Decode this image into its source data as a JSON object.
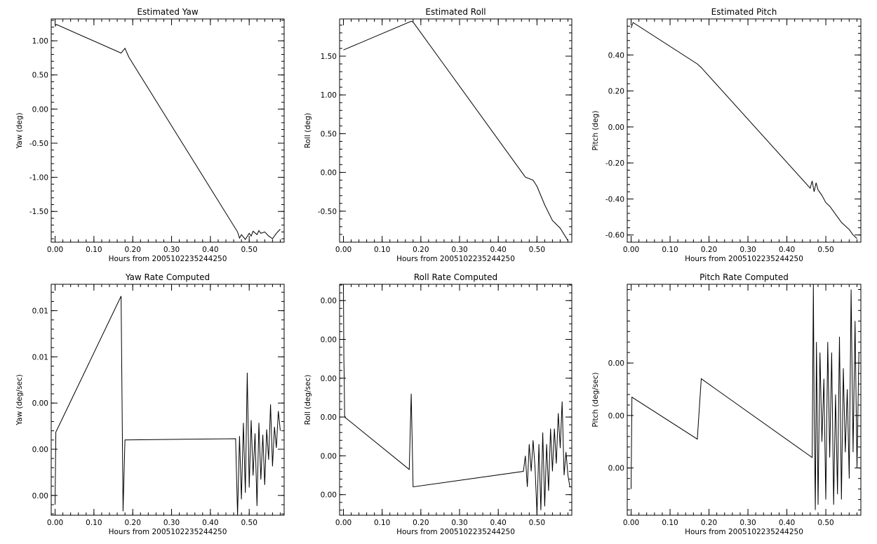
{
  "chart_data": [
    {
      "type": "line",
      "title": "Estimated Yaw",
      "xlabel": "Hours from 2005102235244250",
      "ylabel": "Yaw (deg)",
      "xlim": [
        -0.01,
        0.59
      ],
      "ylim": [
        -1.95,
        1.32
      ],
      "xticks": [
        0.0,
        0.1,
        0.2,
        0.3,
        0.4,
        0.5
      ],
      "xtick_labels": [
        "0.00",
        "0.10",
        "0.20",
        "0.30",
        "0.40",
        "0.50"
      ],
      "yticks": [
        -1.5,
        -1.0,
        -0.5,
        0.0,
        0.5,
        1.0
      ],
      "ytick_labels": [
        "-1.50",
        "-1.00",
        "-0.50",
        "0.00",
        "0.50",
        "1.00"
      ],
      "series": [
        {
          "x": [
            0.0,
            0.003,
            0.17,
            0.18,
            0.19,
            0.47,
            0.475,
            0.48,
            0.49,
            0.5,
            0.505,
            0.51,
            0.52,
            0.525,
            0.53,
            0.54,
            0.55,
            0.56,
            0.57,
            0.575,
            0.58
          ],
          "y": [
            1.21,
            1.24,
            0.82,
            0.89,
            0.76,
            -1.8,
            -1.89,
            -1.84,
            -1.91,
            -1.82,
            -1.86,
            -1.79,
            -1.84,
            -1.78,
            -1.82,
            -1.8,
            -1.86,
            -1.9,
            -1.82,
            -1.79,
            -1.76
          ]
        }
      ]
    },
    {
      "type": "line",
      "title": "Estimated Roll",
      "xlabel": "Hours from 2005102235244250",
      "ylabel": "Roll (deg)",
      "xlim": [
        -0.01,
        0.59
      ],
      "ylim": [
        -0.9,
        1.98
      ],
      "xticks": [
        0.0,
        0.1,
        0.2,
        0.3,
        0.4,
        0.5
      ],
      "xtick_labels": [
        "0.00",
        "0.10",
        "0.20",
        "0.30",
        "0.40",
        "0.50"
      ],
      "yticks": [
        -0.5,
        0.0,
        0.5,
        1.0,
        1.5
      ],
      "ytick_labels": [
        "-0.50",
        "0.00",
        "0.50",
        "1.00",
        "1.50"
      ],
      "series": [
        {
          "x": [
            0.0,
            0.175,
            0.18,
            0.47,
            0.49,
            0.5,
            0.52,
            0.54,
            0.56,
            0.58
          ],
          "y": [
            1.58,
            1.95,
            1.94,
            -0.06,
            -0.1,
            -0.18,
            -0.42,
            -0.62,
            -0.72,
            -0.88
          ]
        }
      ]
    },
    {
      "type": "line",
      "title": "Estimated Pitch",
      "xlabel": "Hours from 2005102235244250",
      "ylabel": "Pitch (deg)",
      "xlim": [
        -0.01,
        0.59
      ],
      "ylim": [
        -0.64,
        0.6
      ],
      "xticks": [
        0.0,
        0.1,
        0.2,
        0.3,
        0.4,
        0.5
      ],
      "xtick_labels": [
        "0.00",
        "0.10",
        "0.20",
        "0.30",
        "0.40",
        "0.50"
      ],
      "yticks": [
        -0.6,
        -0.4,
        -0.2,
        0.0,
        0.2,
        0.4
      ],
      "ytick_labels": [
        "-0.60",
        "-0.40",
        "-0.20",
        "0.00",
        "0.20",
        "0.40"
      ],
      "series": [
        {
          "x": [
            0.0,
            0.005,
            0.17,
            0.18,
            0.46,
            0.465,
            0.47,
            0.475,
            0.48,
            0.49,
            0.5,
            0.51,
            0.52,
            0.53,
            0.54,
            0.55,
            0.56,
            0.57,
            0.58
          ],
          "y": [
            0.55,
            0.58,
            0.35,
            0.33,
            -0.34,
            -0.3,
            -0.36,
            -0.31,
            -0.35,
            -0.38,
            -0.42,
            -0.44,
            -0.47,
            -0.5,
            -0.53,
            -0.55,
            -0.57,
            -0.6,
            -0.62
          ]
        }
      ]
    },
    {
      "type": "line",
      "title": "Yaw Rate Computed",
      "xlabel": "Hours from 2005102235244250",
      "ylabel": "Yaw (deg/sec)",
      "xlim": [
        -0.01,
        0.59
      ],
      "ylim": [
        -0.0015,
        0.016
      ],
      "xticks": [
        0.0,
        0.1,
        0.2,
        0.3,
        0.4,
        0.5
      ],
      "xtick_labels": [
        "0.00",
        "0.10",
        "0.20",
        "0.30",
        "0.40",
        "0.50"
      ],
      "yticks": [
        0.0,
        0.0035,
        0.007,
        0.0105,
        0.014
      ],
      "ytick_labels": [
        "0.00",
        "0.00",
        "0.00",
        "0.01",
        "0.01"
      ],
      "series": [
        {
          "x": [
            0.0,
            0.002,
            0.17,
            0.175,
            0.18,
            0.465,
            0.47,
            0.475,
            0.48,
            0.485,
            0.49,
            0.495,
            0.5,
            0.505,
            0.51,
            0.515,
            0.52,
            0.525,
            0.53,
            0.535,
            0.54,
            0.545,
            0.55,
            0.555,
            0.56,
            0.565,
            0.57,
            0.575,
            0.58
          ],
          "y": [
            -0.0007,
            0.0048,
            0.0151,
            -0.0012,
            0.0042,
            0.0043,
            -0.0015,
            0.0045,
            -0.0003,
            0.0055,
            0.0002,
            0.0093,
            0.0006,
            0.0057,
            0.0015,
            0.0047,
            -0.0008,
            0.0055,
            0.0012,
            0.0046,
            0.0008,
            0.005,
            0.0027,
            0.0069,
            0.0022,
            0.0052,
            0.0036,
            0.0064,
            0.0049
          ]
        }
      ]
    },
    {
      "type": "line",
      "title": "Roll Rate Computed",
      "xlabel": "Hours from 2005102235244250",
      "ylabel": "Roll (deg/sec)",
      "xlim": [
        -0.01,
        0.59
      ],
      "ylim": [
        -0.00053,
        0.00542
      ],
      "xticks": [
        0.0,
        0.1,
        0.2,
        0.3,
        0.4,
        0.5
      ],
      "xtick_labels": [
        "0.00",
        "0.10",
        "0.20",
        "0.30",
        "0.40",
        "0.50"
      ],
      "yticks": [
        0.0,
        0.001,
        0.002,
        0.003,
        0.004,
        0.005
      ],
      "ytick_labels": [
        "0.00",
        "0.00",
        "0.00",
        "0.00",
        "0.00",
        "0.00"
      ],
      "series": [
        {
          "x": [
            0.0,
            0.001,
            0.002,
            0.003,
            0.17,
            0.175,
            0.18,
            0.465,
            0.47,
            0.475,
            0.48,
            0.485,
            0.49,
            0.495,
            0.5,
            0.505,
            0.51,
            0.515,
            0.52,
            0.525,
            0.53,
            0.535,
            0.54,
            0.545,
            0.55,
            0.555,
            0.56,
            0.565,
            0.57,
            0.575,
            0.58,
            0.585
          ],
          "y": [
            0.0054,
            0.0035,
            0.003,
            0.002,
            0.00065,
            0.0026,
            0.0002,
            0.0006,
            0.001,
            0.0002,
            0.0013,
            0.0006,
            0.0014,
            0.0007,
            -0.0005,
            0.0013,
            -0.0004,
            0.0016,
            -0.0003,
            0.0013,
            0.0001,
            0.0017,
            0.0006,
            0.0017,
            0.0008,
            0.0021,
            0.0012,
            0.0024,
            0.0005,
            0.0011,
            0.0005,
            0.0002
          ]
        }
      ]
    },
    {
      "type": "line",
      "title": "Pitch Rate Computed",
      "xlabel": "Hours from 2005102235244250",
      "ylabel": "Pitch (deg/sec)",
      "xlim": [
        -0.01,
        0.59
      ],
      "ylim": [
        -0.0019,
        0.0025
      ],
      "xticks": [
        0.0,
        0.1,
        0.2,
        0.3,
        0.4,
        0.5
      ],
      "xtick_labels": [
        "0.00",
        "0.10",
        "0.20",
        "0.30",
        "0.40",
        "0.50"
      ],
      "yticks": [
        -0.001,
        0.0,
        0.001
      ],
      "ytick_labels": [
        "0.00",
        "0.00",
        "0.00"
      ],
      "series": [
        {
          "x": [
            0.0,
            0.002,
            0.17,
            0.18,
            0.465,
            0.468,
            0.47,
            0.473,
            0.476,
            0.48,
            0.485,
            0.49,
            0.495,
            0.5,
            0.505,
            0.51,
            0.515,
            0.52,
            0.525,
            0.53,
            0.535,
            0.54,
            0.545,
            0.55,
            0.555,
            0.56,
            0.565,
            0.57,
            0.575,
            0.58,
            0.585
          ],
          "y": [
            -0.0014,
            0.00035,
            -0.00045,
            0.0007,
            -0.0008,
            0.0025,
            0.0001,
            -0.0018,
            0.0014,
            -0.0017,
            0.0012,
            -0.0005,
            0.0007,
            -0.0016,
            0.0014,
            -0.0008,
            0.0012,
            -0.0017,
            0.0004,
            -0.0015,
            0.0015,
            -0.0016,
            0.0009,
            -0.0007,
            0.0005,
            -0.0012,
            0.0024,
            -0.0007,
            0.0018,
            -0.001,
            0.0012
          ]
        }
      ]
    }
  ]
}
